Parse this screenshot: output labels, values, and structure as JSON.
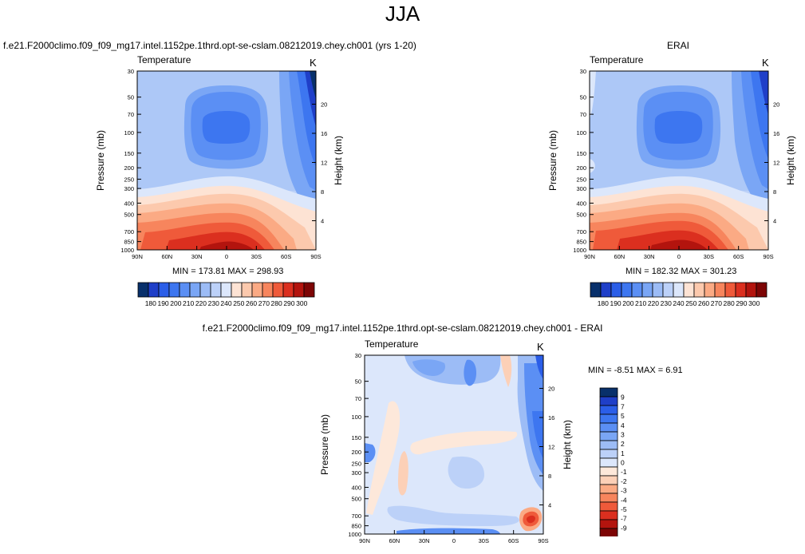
{
  "title": "JJA",
  "colors": {
    "plasma_palette": [
      "#08306b",
      "#1f3fc8",
      "#2b5ee8",
      "#3d76f0",
      "#5b8ff4",
      "#7aa6f5",
      "#9cbcf6",
      "#bcd1f8",
      "#dce7fb",
      "#fde3d4",
      "#fcc9ad",
      "#fbaa84",
      "#f7855d",
      "#ef5a3a",
      "#db2f1f",
      "#b3140e",
      "#7d0505"
    ],
    "diff_palette": [
      "#08306b",
      "#1f3fc8",
      "#2b5ee8",
      "#3d76f0",
      "#5b8ff4",
      "#7aa6f5",
      "#9cbcf6",
      "#bcd1f8",
      "#dce7fb",
      "#fde8da",
      "#fcd0b7",
      "#fbaa84",
      "#f7855d",
      "#ef5a3a",
      "#db2f1f",
      "#b3140e",
      "#7d0505"
    ]
  },
  "chart_data": [
    {
      "type": "heatmap",
      "panel": "model",
      "title": "f.e21.F2000climo.f09_f09_mg17.intel.1152pe.1thrd.opt-se-cslam.08212019.chey.ch001 (yrs 1-20)",
      "left_label": "Temperature",
      "right_label": "K",
      "ylabel": "Pressure (mb)",
      "y2label": "Height (km)",
      "xticks": [
        "90N",
        "60N",
        "30N",
        "0",
        "30S",
        "60S",
        "90S"
      ],
      "yticks": [
        30,
        50,
        70,
        100,
        150,
        200,
        250,
        300,
        400,
        500,
        700,
        850,
        1000
      ],
      "y2ticks": [
        4,
        8,
        12,
        16,
        20
      ],
      "stats": "MIN = 173.81   MAX = 298.93",
      "colorbar_labels": [
        "180",
        "190",
        "200",
        "210",
        "220",
        "230",
        "240",
        "250",
        "260",
        "270",
        "280",
        "290",
        "300"
      ]
    },
    {
      "type": "heatmap",
      "panel": "obs",
      "title": "ERAI",
      "left_label": "Temperature",
      "right_label": "K",
      "ylabel": "Pressure (mb)",
      "y2label": "Height (km)",
      "xticks": [
        "90N",
        "60N",
        "30N",
        "0",
        "30S",
        "60S",
        "90S"
      ],
      "yticks": [
        30,
        50,
        70,
        100,
        150,
        200,
        250,
        300,
        400,
        500,
        700,
        850,
        1000
      ],
      "y2ticks": [
        4,
        8,
        12,
        16,
        20
      ],
      "stats": "MIN = 182.32   MAX = 301.23",
      "colorbar_labels": [
        "180",
        "190",
        "200",
        "210",
        "220",
        "230",
        "240",
        "250",
        "260",
        "270",
        "280",
        "290",
        "300"
      ]
    },
    {
      "type": "heatmap",
      "panel": "diff",
      "title": "f.e21.F2000climo.f09_f09_mg17.intel.1152pe.1thrd.opt-se-cslam.08212019.chey.ch001 - ERAI",
      "left_label": "Temperature",
      "right_label": "K",
      "ylabel": "Pressure (mb)",
      "y2label": "Height (km)",
      "xticks": [
        "90N",
        "60N",
        "30N",
        "0",
        "30S",
        "60S",
        "90S"
      ],
      "yticks": [
        30,
        50,
        70,
        100,
        150,
        200,
        250,
        300,
        400,
        500,
        700,
        850,
        1000
      ],
      "y2ticks": [
        4,
        8,
        12,
        16,
        20
      ],
      "stats": "MIN =  -8.51   MAX =   6.91",
      "colorbar_labels": [
        "9",
        "7",
        "5",
        "4",
        "3",
        "2",
        "1",
        "0",
        "-1",
        "-2",
        "-3",
        "-4",
        "-5",
        "-7",
        "-9"
      ]
    }
  ]
}
